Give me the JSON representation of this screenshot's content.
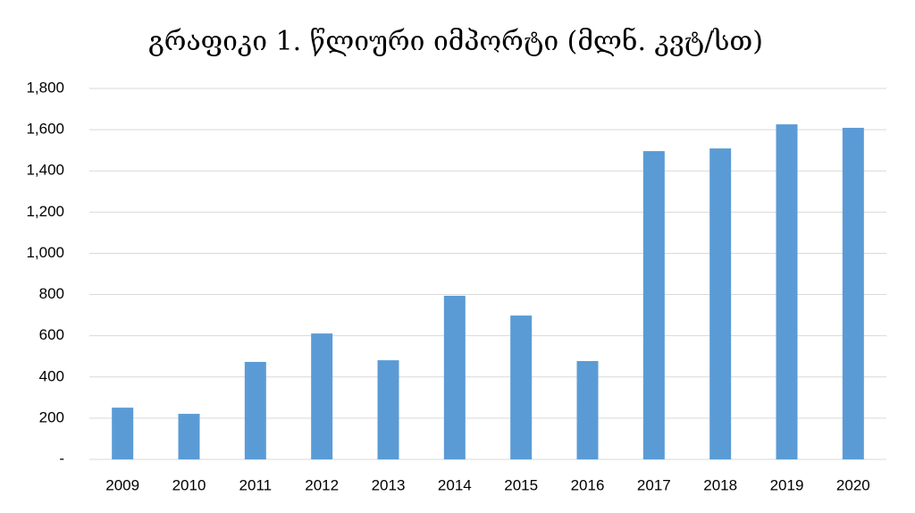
{
  "chart_data": {
    "type": "bar",
    "title": "გრაფიკი 1. წლიური იმპორტი (მლნ. კვტ/სთ)",
    "categories": [
      "2009",
      "2010",
      "2011",
      "2012",
      "2013",
      "2014",
      "2015",
      "2016",
      "2017",
      "2018",
      "2019",
      "2020"
    ],
    "values": [
      251,
      221,
      473,
      611,
      481,
      794,
      698,
      477,
      1496,
      1509,
      1626,
      1609
    ],
    "color": "#5b9bd5",
    "ylim": [
      0,
      1800
    ],
    "yticks": [
      {
        "value": 0,
        "label": "-"
      },
      200,
      400,
      600,
      800,
      {
        "value": 1000,
        "label": "1,000"
      },
      {
        "value": 1200,
        "label": "1,200"
      },
      {
        "value": 1400,
        "label": "1,400"
      },
      {
        "value": 1600,
        "label": "1,600"
      },
      {
        "value": 1800,
        "label": "1,800"
      }
    ],
    "grid": true
  }
}
